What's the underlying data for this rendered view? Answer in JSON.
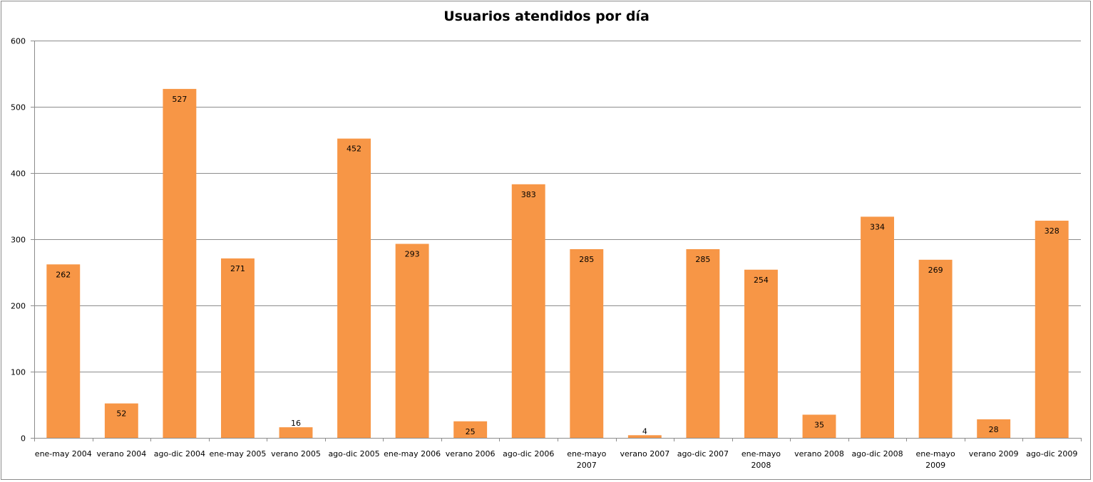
{
  "chart_data": {
    "type": "bar",
    "title": "Usuarios atendidos por día",
    "xlabel": "",
    "ylabel": "",
    "ylim": [
      0,
      600
    ],
    "yticks": [
      0,
      100,
      200,
      300,
      400,
      500,
      600
    ],
    "grid": true,
    "legend": "none",
    "bar_color": "#f79646",
    "categories": [
      [
        "ene-may 2004"
      ],
      [
        "verano 2004"
      ],
      [
        "ago-dic 2004"
      ],
      [
        "ene-may 2005"
      ],
      [
        "verano 2005"
      ],
      [
        "ago-dic 2005"
      ],
      [
        "ene-may 2006"
      ],
      [
        "verano 2006"
      ],
      [
        "ago-dic 2006"
      ],
      [
        "ene-mayo",
        "2007"
      ],
      [
        "verano 2007"
      ],
      [
        "ago-dic 2007"
      ],
      [
        "ene-mayo",
        "2008"
      ],
      [
        "verano 2008"
      ],
      [
        "ago-dic 2008"
      ],
      [
        "ene-mayo",
        "2009"
      ],
      [
        "verano 2009"
      ],
      [
        "ago-dic 2009"
      ]
    ],
    "values": [
      262,
      52,
      527,
      271,
      16,
      452,
      293,
      25,
      383,
      285,
      4,
      285,
      254,
      35,
      334,
      269,
      28,
      328
    ]
  }
}
